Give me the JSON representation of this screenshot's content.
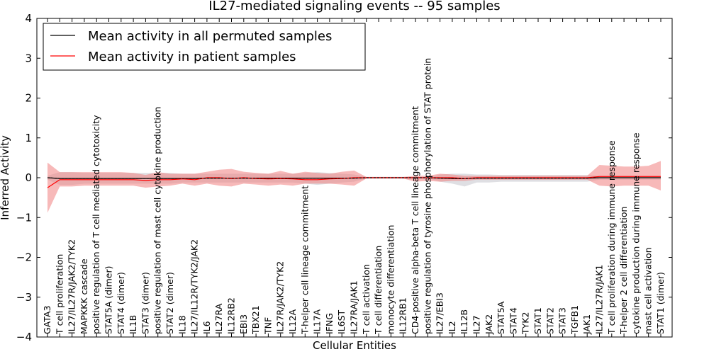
{
  "chart_data": {
    "type": "line",
    "title": "IL27-mediated signaling events -- 95 samples",
    "xlabel": "Cellular Entities",
    "ylabel": "Inferred Activity",
    "ylim": [
      -4,
      4
    ],
    "yticks": [
      -4,
      -3,
      -2,
      -1,
      0,
      1,
      2,
      3,
      4
    ],
    "ytick_labels": [
      "−4",
      "−3",
      "−2",
      "−1",
      "0",
      "1",
      "2",
      "3",
      "4"
    ],
    "legend_position": "top-left",
    "categories": [
      "GATA3",
      "T cell proliferation",
      "IL27/IL27R/JAK2/TYK2",
      "MAPKKK cascade",
      "positive regulation of T cell mediated cytotoxicity",
      "STAT5A (dimer)",
      "STAT4 (dimer)",
      "IL1B",
      "STAT3 (dimer)",
      "positive regulation of mast cell cytokine production",
      "STAT2 (dimer)",
      "IL18",
      "IL27/IL12R/TYK2/JAK2",
      "IL6",
      "IL27RA",
      "IL12RB2",
      "EBI3",
      "TBX21",
      "TNF",
      "IL27R/JAK2/TYK2",
      "IL12A",
      "T-helper cell lineage commitment",
      "IL17A",
      "IFNG",
      "IL6ST",
      "IL27RA/JAK1",
      "T cell activation",
      "T cell differentiation",
      "monocyte differentiation",
      "IL12RB1",
      "CD4-positive alpha-beta T cell lineage commitment",
      "positive regulation of tyrosine phosphorylation of STAT protein",
      "IL27/EBI3",
      "IL2",
      "IL12B",
      "IL27",
      "JAK2",
      "STAT5A",
      "STAT4",
      "TYK2",
      "STAT1",
      "STAT2",
      "STAT3",
      "TGFB1",
      "JAK1",
      "IL27/IL27R/JAK1",
      "T cell proliferation during immune response",
      "T-helper 2 cell differentiation",
      "cytokine production during immune response",
      "mast cell activation",
      "STAT1 (dimer)"
    ],
    "series": [
      {
        "name": "Mean activity in all permuted samples",
        "color": "#000000",
        "band_color": "#b8b8c0",
        "values": [
          0,
          -0.02,
          -0.02,
          -0.02,
          -0.02,
          -0.02,
          -0.02,
          -0.02,
          -0.02,
          -0.02,
          -0.02,
          -0.02,
          -0.02,
          -0.01,
          -0.01,
          -0.01,
          -0.01,
          -0.01,
          -0.01,
          -0.01,
          -0.01,
          -0.01,
          -0.01,
          -0.01,
          -0.01,
          -0.01,
          0,
          0,
          0,
          0,
          0,
          0,
          -0.01,
          -0.02,
          -0.02,
          -0.01,
          -0.01,
          -0.01,
          -0.01,
          -0.01,
          -0.01,
          -0.01,
          -0.01,
          -0.01,
          -0.01,
          0,
          0,
          0,
          0,
          0,
          0
        ],
        "band_lower": [
          -0.05,
          -0.18,
          -0.18,
          -0.15,
          -0.15,
          -0.15,
          -0.15,
          -0.15,
          -0.15,
          -0.15,
          -0.15,
          -0.12,
          -0.12,
          -0.12,
          -0.12,
          -0.12,
          -0.12,
          -0.12,
          -0.12,
          -0.12,
          -0.12,
          -0.15,
          -0.18,
          -0.15,
          -0.12,
          -0.1,
          -0.02,
          -0.02,
          -0.02,
          -0.02,
          -0.01,
          -0.01,
          -0.1,
          -0.15,
          -0.22,
          -0.12,
          -0.12,
          -0.1,
          -0.1,
          -0.1,
          -0.1,
          -0.1,
          -0.1,
          -0.1,
          -0.1,
          -0.05,
          -0.05,
          -0.05,
          -0.05,
          -0.05,
          -0.05
        ],
        "band_upper": [
          0.05,
          0.14,
          0.14,
          0.12,
          0.12,
          0.12,
          0.12,
          0.12,
          0.12,
          0.12,
          0.12,
          0.1,
          0.1,
          0.1,
          0.1,
          0.1,
          0.1,
          0.1,
          0.1,
          0.1,
          0.1,
          0.12,
          0.14,
          0.12,
          0.1,
          0.08,
          0.02,
          0.02,
          0.02,
          0.02,
          0.01,
          0.01,
          0.08,
          0.1,
          0.1,
          0.08,
          0.08,
          0.07,
          0.07,
          0.07,
          0.07,
          0.07,
          0.07,
          0.07,
          0.07,
          0.05,
          0.05,
          0.05,
          0.05,
          0.05,
          0.05
        ]
      },
      {
        "name": "Mean activity in patient samples",
        "color": "#ff0000",
        "band_color": "#f08080",
        "values": [
          -0.25,
          -0.05,
          -0.05,
          -0.05,
          -0.05,
          -0.05,
          -0.05,
          -0.05,
          -0.07,
          -0.05,
          -0.05,
          -0.03,
          -0.05,
          0,
          0,
          -0.02,
          0,
          -0.02,
          -0.03,
          -0.02,
          -0.03,
          -0.05,
          -0.05,
          -0.03,
          -0.02,
          0,
          0,
          0,
          0,
          0,
          0,
          0,
          0,
          0,
          -0.02,
          0,
          0,
          0,
          0,
          0,
          0,
          0,
          0,
          0,
          0,
          0.03,
          0.03,
          0.03,
          0.03,
          0.03,
          0.03
        ],
        "band_lower": [
          -0.88,
          -0.22,
          -0.22,
          -0.2,
          -0.2,
          -0.2,
          -0.2,
          -0.2,
          -0.25,
          -0.22,
          -0.2,
          -0.15,
          -0.2,
          -0.15,
          -0.2,
          -0.22,
          -0.15,
          -0.17,
          -0.2,
          -0.17,
          -0.2,
          -0.15,
          -0.15,
          -0.15,
          -0.17,
          -0.2,
          -0.02,
          -0.02,
          -0.02,
          -0.02,
          -0.1,
          -0.08,
          -0.1,
          -0.08,
          -0.08,
          -0.05,
          -0.05,
          -0.05,
          -0.05,
          -0.05,
          -0.05,
          -0.05,
          -0.05,
          -0.05,
          -0.05,
          -0.2,
          -0.22,
          -0.2,
          -0.2,
          -0.2,
          -0.32
        ],
        "band_upper": [
          0.38,
          0.14,
          0.14,
          0.14,
          0.14,
          0.14,
          0.14,
          0.12,
          0.07,
          0.14,
          0.1,
          0.1,
          0.1,
          0.15,
          0.2,
          0.22,
          0.15,
          0.12,
          0.1,
          0.17,
          0.1,
          0.15,
          0.12,
          0.1,
          0.15,
          0.18,
          0.02,
          0.02,
          0.02,
          0.02,
          0.05,
          0.05,
          0.1,
          0.08,
          0.05,
          0.05,
          0.05,
          0.05,
          0.05,
          0.05,
          0.05,
          0.05,
          0.05,
          0.05,
          0.05,
          0.32,
          0.3,
          0.28,
          0.28,
          0.3,
          0.42
        ]
      }
    ]
  }
}
